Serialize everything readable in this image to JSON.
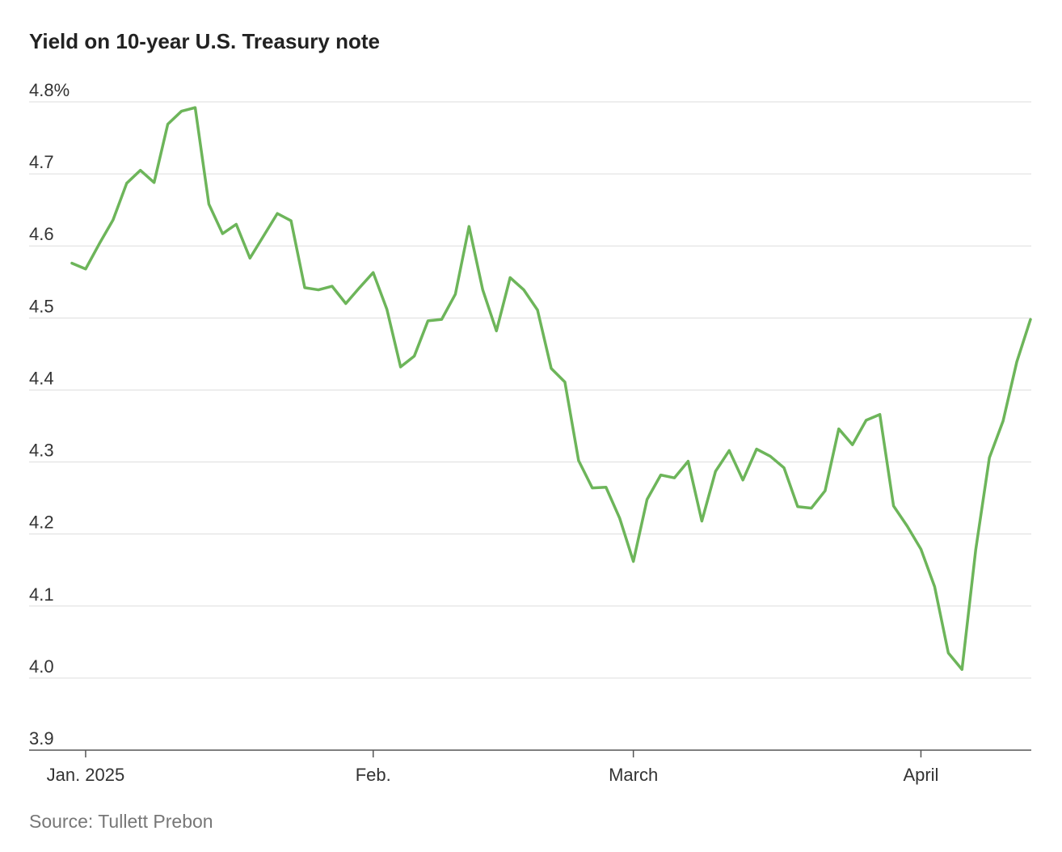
{
  "chart_data": {
    "type": "line",
    "title": "Yield on 10-year U.S. Treasury note",
    "source": "Source: Tullett Prebon",
    "categories": [
      null,
      "Jan. 2025",
      null,
      null,
      null,
      null,
      null,
      null,
      null,
      null,
      null,
      null,
      null,
      null,
      null,
      null,
      null,
      null,
      null,
      null,
      null,
      null,
      "Feb.",
      null,
      null,
      null,
      null,
      null,
      null,
      null,
      null,
      null,
      null,
      null,
      null,
      null,
      null,
      null,
      null,
      null,
      null,
      "March",
      null,
      null,
      null,
      null,
      null,
      null,
      null,
      null,
      null,
      null,
      null,
      null,
      null,
      null,
      null,
      null,
      null,
      null,
      null,
      null,
      "April",
      null,
      null,
      null,
      null,
      null,
      null,
      null,
      null
    ],
    "series": [
      {
        "name": "10-year yield",
        "color": "#6db55a",
        "values": [
          4.576,
          4.568,
          4.603,
          4.636,
          4.687,
          4.705,
          4.688,
          4.769,
          4.787,
          4.792,
          4.658,
          4.617,
          4.63,
          4.583,
          4.614,
          4.645,
          4.635,
          4.542,
          4.539,
          4.544,
          4.52,
          4.542,
          4.563,
          4.512,
          4.432,
          4.447,
          4.496,
          4.498,
          4.533,
          4.627,
          4.539,
          4.482,
          4.556,
          4.539,
          4.511,
          4.43,
          4.411,
          4.302,
          4.264,
          4.265,
          4.222,
          4.162,
          4.248,
          4.282,
          4.278,
          4.301,
          4.218,
          4.287,
          4.316,
          4.275,
          4.318,
          4.308,
          4.292,
          4.238,
          4.236,
          4.26,
          4.346,
          4.324,
          4.358,
          4.366,
          4.239,
          4.211,
          4.179,
          4.127,
          4.035,
          4.012,
          4.178,
          4.306,
          4.357,
          4.439,
          4.498
        ]
      }
    ],
    "ylim": [
      3.9,
      4.8
    ],
    "yticks": [
      3.9,
      {
        "value": 4.0,
        "label": "4.0"
      },
      4.1,
      4.2,
      4.3,
      4.4,
      4.5,
      4.6,
      4.7,
      {
        "value": 4.8,
        "label": "4.8%"
      }
    ],
    "grid": true
  }
}
